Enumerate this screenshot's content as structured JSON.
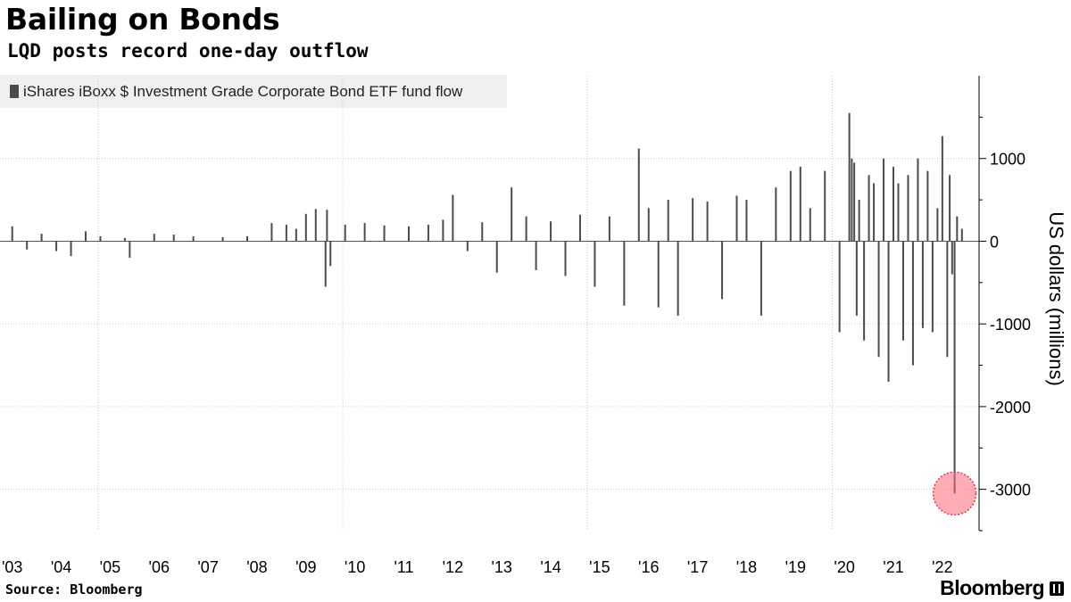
{
  "header": {
    "title": "Bailing on Bonds",
    "subtitle": "LQD posts record one-day outflow"
  },
  "legend": {
    "label": "iShares iBoxx $ Investment Grade Corporate Bond ETF fund flow",
    "swatch_color": "#4c4c4c"
  },
  "footer": {
    "source": "Source: Bloomberg",
    "brand": "Bloomberg",
    "brand_icon": "terminal-icon"
  },
  "chart_data": {
    "type": "bar",
    "title": "Bailing on Bonds",
    "subtitle": "LQD posts record one-day outflow",
    "ylabel": "US dollars (millions)",
    "ylim": [
      -3500,
      2000
    ],
    "yticks": [
      1000,
      0,
      -1000,
      -2000,
      -3000
    ],
    "ytick_labels": [
      "1000",
      "0",
      "-1000",
      "-2000",
      "-3000"
    ],
    "y_axis_side": "right",
    "grid": true,
    "xlim": [
      2002.75,
      2022.75
    ],
    "xticks": [
      "'03",
      "'04",
      "'05",
      "'06",
      "'07",
      "'08",
      "'09",
      "'10",
      "'11",
      "'12",
      "'13",
      "'14",
      "'15",
      "'16",
      "'17",
      "'18",
      "'19",
      "'20",
      "'21",
      "'22"
    ],
    "legend_position": "top-left",
    "series": [
      {
        "name": "iShares iBoxx $ Investment Grade Corporate Bond ETF fund flow",
        "color": "#4c4c4c",
        "x": [
          2003.0,
          2003.3,
          2003.6,
          2003.9,
          2004.2,
          2004.5,
          2004.8,
          2005.3,
          2005.4,
          2005.9,
          2006.3,
          2006.7,
          2007.3,
          2007.8,
          2008.3,
          2008.6,
          2008.8,
          2009.0,
          2009.2,
          2009.4,
          2009.43,
          2009.5,
          2009.8,
          2010.2,
          2010.6,
          2011.1,
          2011.5,
          2011.8,
          2012.0,
          2012.3,
          2012.6,
          2012.9,
          2013.2,
          2013.5,
          2013.7,
          2014.0,
          2014.3,
          2014.6,
          2014.9,
          2015.2,
          2015.5,
          2015.8,
          2016.0,
          2016.2,
          2016.4,
          2016.6,
          2016.9,
          2017.2,
          2017.5,
          2017.8,
          2018.0,
          2018.3,
          2018.6,
          2018.9,
          2019.1,
          2019.3,
          2019.6,
          2019.9,
          2020.1,
          2020.15,
          2020.2,
          2020.25,
          2020.3,
          2020.4,
          2020.5,
          2020.6,
          2020.7,
          2020.8,
          2020.9,
          2021.0,
          2021.1,
          2021.2,
          2021.3,
          2021.4,
          2021.5,
          2021.6,
          2021.7,
          2021.8,
          2021.9,
          2022.0,
          2022.1,
          2022.15,
          2022.2,
          2022.25,
          2022.3,
          2022.4
        ],
        "values": [
          180,
          -100,
          90,
          -120,
          -180,
          120,
          60,
          40,
          -200,
          90,
          80,
          60,
          50,
          60,
          220,
          200,
          150,
          330,
          390,
          -550,
          380,
          -300,
          200,
          220,
          190,
          180,
          200,
          260,
          560,
          -120,
          230,
          -380,
          650,
          300,
          -350,
          240,
          -420,
          320,
          -550,
          300,
          -780,
          1120,
          400,
          -800,
          500,
          -900,
          520,
          480,
          -700,
          550,
          500,
          -900,
          650,
          850,
          900,
          400,
          850,
          -1100,
          1550,
          1000,
          950,
          -900,
          500,
          -1200,
          800,
          700,
          -1400,
          1000,
          -1700,
          900,
          700,
          -1200,
          800,
          -1500,
          1000,
          -1050,
          850,
          -1100,
          400,
          1270,
          -1400,
          800,
          -400,
          -3050,
          300,
          150
        ]
      }
    ],
    "annotations": [
      {
        "type": "highlight-circle",
        "x": 2022.25,
        "y": -3050,
        "color": "#ff6b7e"
      }
    ]
  }
}
